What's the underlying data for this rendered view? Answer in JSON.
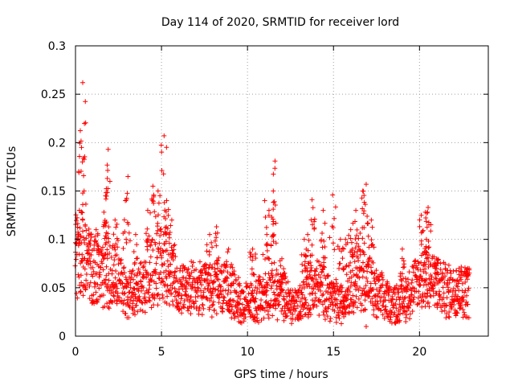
{
  "chart_data": {
    "type": "scatter",
    "title": "Day 114 of 2020, SRMTID for receiver lord",
    "xlabel": "GPS time / hours",
    "ylabel": "SRMTID / TECUs",
    "xlim": [
      0,
      24
    ],
    "ylim": [
      0,
      0.3
    ],
    "grid": true,
    "marker": "+",
    "color": "#ff0000",
    "x_ticks": [
      0,
      5,
      10,
      15,
      20
    ],
    "x_tick_labels": [
      "0",
      "5",
      "10",
      "15",
      "20"
    ],
    "y_ticks": [
      0,
      0.05,
      0.1,
      0.15,
      0.2,
      0.25,
      0.3
    ],
    "y_tick_labels": [
      "0",
      "0.05",
      "0.1",
      "0.15",
      "0.2",
      "0.25",
      "0.3"
    ],
    "baseline_profile": [
      [
        0,
        0.09
      ],
      [
        0.5,
        0.085
      ],
      [
        1,
        0.075
      ],
      [
        1.5,
        0.07
      ],
      [
        2,
        0.068
      ],
      [
        2.5,
        0.06
      ],
      [
        3,
        0.048
      ],
      [
        3.5,
        0.045
      ],
      [
        4,
        0.06
      ],
      [
        4.5,
        0.075
      ],
      [
        5,
        0.08
      ],
      [
        5.5,
        0.065
      ],
      [
        6,
        0.055
      ],
      [
        6.5,
        0.05
      ],
      [
        7,
        0.05
      ],
      [
        7.5,
        0.05
      ],
      [
        8,
        0.052
      ],
      [
        8.5,
        0.05
      ],
      [
        9,
        0.048
      ],
      [
        9.5,
        0.04
      ],
      [
        10,
        0.035
      ],
      [
        10.5,
        0.038
      ],
      [
        11,
        0.045
      ],
      [
        11.5,
        0.05
      ],
      [
        12,
        0.045
      ],
      [
        12.5,
        0.035
      ],
      [
        13,
        0.035
      ],
      [
        13.5,
        0.05
      ],
      [
        14,
        0.055
      ],
      [
        14.5,
        0.05
      ],
      [
        15,
        0.04
      ],
      [
        15.5,
        0.035
      ],
      [
        16,
        0.06
      ],
      [
        16.5,
        0.065
      ],
      [
        17,
        0.06
      ],
      [
        17.5,
        0.045
      ],
      [
        18,
        0.04
      ],
      [
        18.5,
        0.035
      ],
      [
        19,
        0.04
      ],
      [
        19.5,
        0.05
      ],
      [
        20,
        0.06
      ],
      [
        20.5,
        0.065
      ],
      [
        21,
        0.055
      ],
      [
        21.5,
        0.05
      ],
      [
        22,
        0.05
      ],
      [
        22.5,
        0.048
      ],
      [
        22.9,
        0.05
      ]
    ],
    "peaks": [
      [
        0.15,
        0.105
      ],
      [
        0.35,
        0.195
      ],
      [
        0.42,
        0.262
      ],
      [
        0.5,
        0.15
      ],
      [
        0.9,
        0.105
      ],
      [
        1.2,
        0.11
      ],
      [
        1.75,
        0.145
      ],
      [
        1.85,
        0.163
      ],
      [
        1.9,
        0.193
      ],
      [
        2.3,
        0.12
      ],
      [
        2.9,
        0.14
      ],
      [
        3.05,
        0.165
      ],
      [
        3.5,
        0.105
      ],
      [
        4.2,
        0.13
      ],
      [
        4.5,
        0.155
      ],
      [
        4.8,
        0.15
      ],
      [
        5.15,
        0.207
      ],
      [
        5.3,
        0.14
      ],
      [
        5.6,
        0.12
      ],
      [
        7.8,
        0.105
      ],
      [
        8.2,
        0.113
      ],
      [
        8.9,
        0.09
      ],
      [
        10.3,
        0.09
      ],
      [
        11.0,
        0.14
      ],
      [
        11.25,
        0.13
      ],
      [
        11.5,
        0.15
      ],
      [
        11.6,
        0.181
      ],
      [
        12.0,
        0.08
      ],
      [
        13.3,
        0.1
      ],
      [
        13.5,
        0.105
      ],
      [
        13.75,
        0.141
      ],
      [
        14.4,
        0.13
      ],
      [
        14.95,
        0.146
      ],
      [
        15.4,
        0.1
      ],
      [
        15.7,
        0.1
      ],
      [
        16.0,
        0.11
      ],
      [
        16.3,
        0.13
      ],
      [
        16.7,
        0.15
      ],
      [
        16.9,
        0.157
      ],
      [
        17.2,
        0.12
      ],
      [
        19.0,
        0.09
      ],
      [
        20.1,
        0.125
      ],
      [
        20.4,
        0.1
      ],
      [
        20.5,
        0.133
      ],
      [
        21.0,
        0.08
      ],
      [
        22.3,
        0.07
      ],
      [
        22.8,
        0.07
      ]
    ],
    "low_outliers": [
      [
        9.5,
        0.015
      ],
      [
        9.8,
        0.018
      ],
      [
        12.2,
        0.02
      ],
      [
        13.0,
        0.018
      ],
      [
        15.6,
        0.02
      ],
      [
        16.9,
        0.01
      ],
      [
        17.5,
        0.02
      ],
      [
        18.7,
        0.015
      ],
      [
        19.2,
        0.015
      ],
      [
        21.7,
        0.02
      ]
    ]
  }
}
